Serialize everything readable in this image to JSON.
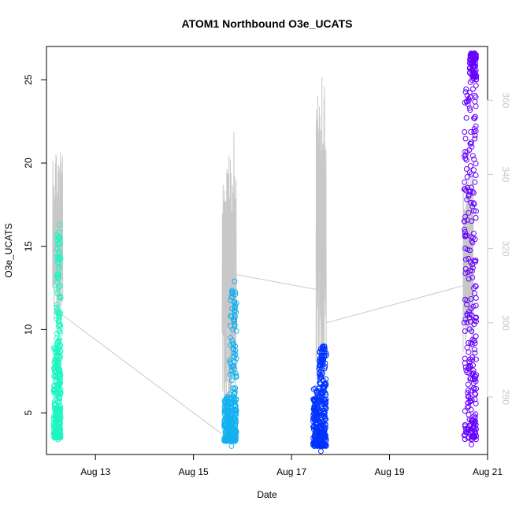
{
  "chart_data": {
    "type": "scatter",
    "title": "ATOM1 Northbound O3e_UCATS",
    "xlabel": "Date",
    "ylabel": "O3e_UCATS",
    "x_unit": "date",
    "xlim": [
      "2016-08-12 00:00",
      "2016-08-21 00:00"
    ],
    "x_ticks": [
      "Aug 13",
      "Aug 15",
      "Aug 17",
      "Aug 19",
      "Aug 21"
    ],
    "x_tick_dates": [
      "2016-08-13",
      "2016-08-15",
      "2016-08-17",
      "2016-08-19",
      "2016-08-21"
    ],
    "ylim": [
      2.5,
      27
    ],
    "y_ticks": [
      5,
      10,
      15,
      20,
      25
    ],
    "y2_ticks": [
      280,
      300,
      320,
      340,
      360
    ],
    "y2lim": [
      264.5,
      374.5
    ],
    "grid": false,
    "legend": "none",
    "series": [
      {
        "kind": "points",
        "color": "#1ef5c2",
        "x_start": "2016-08-12 03:30",
        "x_end": "2016-08-12 07:00",
        "y_min": 3.4,
        "y_max": 16.3,
        "main_band": [
          3.5,
          9.0
        ]
      },
      {
        "kind": "points",
        "color": "#14b0f0",
        "x_start": "2016-08-15 15:00",
        "x_end": "2016-08-15 21:00",
        "y_min": 3.0,
        "y_max": 12.9,
        "main_band": [
          3.3,
          6.0
        ]
      },
      {
        "kind": "points",
        "color": "#0033ff",
        "x_start": "2016-08-17 10:30",
        "x_end": "2016-08-17 17:00",
        "y_min": 2.7,
        "y_max": 9.0,
        "main_band": [
          3.0,
          6.5
        ]
      },
      {
        "kind": "points",
        "color": "#6600ff",
        "x_start": "2016-08-20 12:30",
        "x_end": "2016-08-20 18:30",
        "y_min": 3.1,
        "y_max": 26.6,
        "main_band": [
          3.4,
          25.0
        ]
      },
      {
        "kind": "line",
        "axis": "right",
        "color": "#c8c8c8",
        "segments": [
          {
            "x_start": "2016-08-12 03:00",
            "x_end": "2016-08-12 08:00",
            "y_low": 298,
            "y_high": 349
          },
          {
            "x_start": "2016-08-15 14:00",
            "x_end": "2016-08-15 21:00",
            "y_low": 273,
            "y_high": 352
          },
          {
            "x_start": "2016-08-17 12:00",
            "x_end": "2016-08-17 17:00",
            "y_low": 283,
            "y_high": 374
          },
          {
            "x_start": "2016-08-20 12:00",
            "x_end": "2016-08-20 17:00",
            "y_low": 292,
            "y_high": 342
          }
        ],
        "connectors": [
          [
            [
              "2016-08-12 08:00",
              302
            ],
            [
              "2016-08-15 14:00",
              270
            ]
          ],
          [
            [
              "2016-08-15 21:00",
              313
            ],
            [
              "2016-08-17 12:00",
              309
            ]
          ],
          [
            [
              "2016-08-17 17:00",
              300
            ],
            [
              "2016-08-20 12:00",
              310
            ]
          ]
        ]
      }
    ]
  }
}
